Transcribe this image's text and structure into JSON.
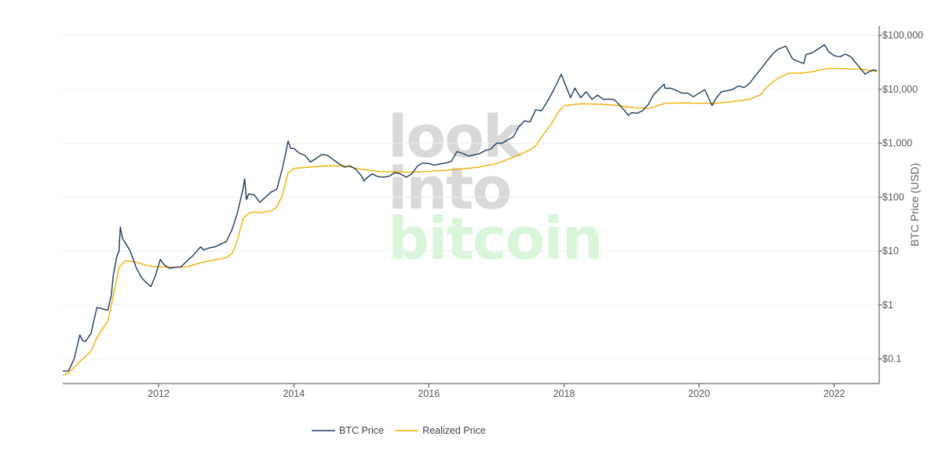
{
  "chart_data": {
    "type": "line",
    "title": "",
    "xlabel": "",
    "ylabel": "BTC Price (USD)",
    "y_scale": "log",
    "ylim": [
      0.035,
      150000
    ],
    "xlim": [
      "2010-08-01",
      "2022-09-01"
    ],
    "x_ticks": [
      "2012",
      "2014",
      "2016",
      "2018",
      "2020",
      "2022"
    ],
    "y_ticks": [
      {
        "value": 0.1,
        "label": "$0.1"
      },
      {
        "value": 1,
        "label": "$1"
      },
      {
        "value": 10,
        "label": "$10"
      },
      {
        "value": 100,
        "label": "$100"
      },
      {
        "value": 1000,
        "label": "$1,000"
      },
      {
        "value": 10000,
        "label": "$10,000"
      },
      {
        "value": 100000,
        "label": "$100,000"
      }
    ],
    "grid": true,
    "legend_position": "bottom-center",
    "watermark": {
      "lines": [
        "look",
        "into",
        "bitcoin"
      ],
      "colors": [
        "#d9d9d9",
        "#d9d9d9",
        "#d8f5da"
      ]
    },
    "series": [
      {
        "name": "BTC Price",
        "color": "#1d3a5c",
        "points": [
          [
            "2010-08-01",
            0.06
          ],
          [
            "2010-09-01",
            0.06
          ],
          [
            "2010-10-01",
            0.1
          ],
          [
            "2010-11-01",
            0.28
          ],
          [
            "2010-11-15",
            0.22
          ],
          [
            "2010-12-01",
            0.21
          ],
          [
            "2011-01-01",
            0.3
          ],
          [
            "2011-02-01",
            0.9
          ],
          [
            "2011-03-01",
            0.85
          ],
          [
            "2011-04-01",
            0.8
          ],
          [
            "2011-04-20",
            1.5
          ],
          [
            "2011-05-01",
            3.5
          ],
          [
            "2011-05-20",
            8
          ],
          [
            "2011-06-01",
            10
          ],
          [
            "2011-06-08",
            28
          ],
          [
            "2011-06-20",
            17
          ],
          [
            "2011-07-01",
            15
          ],
          [
            "2011-08-01",
            10
          ],
          [
            "2011-09-01",
            5
          ],
          [
            "2011-10-01",
            3.2
          ],
          [
            "2011-11-01",
            2.5
          ],
          [
            "2011-11-20",
            2.2
          ],
          [
            "2011-12-15",
            3.5
          ],
          [
            "2012-01-10",
            7
          ],
          [
            "2012-02-01",
            5.5
          ],
          [
            "2012-03-01",
            4.8
          ],
          [
            "2012-04-01",
            5
          ],
          [
            "2012-05-01",
            5.1
          ],
          [
            "2012-06-01",
            6.5
          ],
          [
            "2012-07-01",
            8
          ],
          [
            "2012-08-15",
            12
          ],
          [
            "2012-09-01",
            10.5
          ],
          [
            "2012-10-01",
            11.5
          ],
          [
            "2012-11-01",
            12
          ],
          [
            "2012-12-01",
            13.5
          ],
          [
            "2013-01-01",
            15
          ],
          [
            "2013-02-01",
            25
          ],
          [
            "2013-03-01",
            50
          ],
          [
            "2013-04-01",
            140
          ],
          [
            "2013-04-10",
            220
          ],
          [
            "2013-04-20",
            90
          ],
          [
            "2013-05-01",
            115
          ],
          [
            "2013-06-01",
            110
          ],
          [
            "2013-07-01",
            80
          ],
          [
            "2013-08-01",
            100
          ],
          [
            "2013-09-01",
            125
          ],
          [
            "2013-10-01",
            140
          ],
          [
            "2013-11-01",
            350
          ],
          [
            "2013-11-20",
            700
          ],
          [
            "2013-12-01",
            1100
          ],
          [
            "2013-12-15",
            800
          ],
          [
            "2014-01-01",
            800
          ],
          [
            "2014-02-01",
            650
          ],
          [
            "2014-03-01",
            600
          ],
          [
            "2014-04-01",
            450
          ],
          [
            "2014-05-01",
            520
          ],
          [
            "2014-06-01",
            620
          ],
          [
            "2014-07-01",
            600
          ],
          [
            "2014-08-01",
            500
          ],
          [
            "2014-09-01",
            420
          ],
          [
            "2014-10-01",
            360
          ],
          [
            "2014-11-01",
            380
          ],
          [
            "2014-12-01",
            330
          ],
          [
            "2015-01-01",
            250
          ],
          [
            "2015-01-15",
            200
          ],
          [
            "2015-02-01",
            230
          ],
          [
            "2015-03-01",
            270
          ],
          [
            "2015-04-01",
            240
          ],
          [
            "2015-05-01",
            235
          ],
          [
            "2015-06-01",
            245
          ],
          [
            "2015-07-01",
            285
          ],
          [
            "2015-08-01",
            270
          ],
          [
            "2015-09-01",
            235
          ],
          [
            "2015-10-01",
            270
          ],
          [
            "2015-11-01",
            380
          ],
          [
            "2015-12-01",
            430
          ],
          [
            "2016-01-01",
            420
          ],
          [
            "2016-02-01",
            390
          ],
          [
            "2016-03-01",
            415
          ],
          [
            "2016-04-01",
            430
          ],
          [
            "2016-05-01",
            460
          ],
          [
            "2016-06-01",
            700
          ],
          [
            "2016-07-01",
            650
          ],
          [
            "2016-08-01",
            580
          ],
          [
            "2016-09-01",
            605
          ],
          [
            "2016-10-01",
            640
          ],
          [
            "2016-11-01",
            730
          ],
          [
            "2016-12-01",
            780
          ],
          [
            "2017-01-01",
            1000
          ],
          [
            "2017-02-01",
            1000
          ],
          [
            "2017-03-01",
            1150
          ],
          [
            "2017-04-01",
            1300
          ],
          [
            "2017-05-01",
            2000
          ],
          [
            "2017-06-01",
            2600
          ],
          [
            "2017-07-01",
            2500
          ],
          [
            "2017-08-01",
            4200
          ],
          [
            "2017-09-01",
            4000
          ],
          [
            "2017-10-01",
            5800
          ],
          [
            "2017-11-01",
            9000
          ],
          [
            "2017-12-17",
            19000
          ],
          [
            "2018-01-01",
            14000
          ],
          [
            "2018-02-05",
            7000
          ],
          [
            "2018-03-01",
            10500
          ],
          [
            "2018-04-01",
            7000
          ],
          [
            "2018-05-01",
            9000
          ],
          [
            "2018-06-01",
            6500
          ],
          [
            "2018-07-01",
            7800
          ],
          [
            "2018-08-01",
            6500
          ],
          [
            "2018-09-01",
            6600
          ],
          [
            "2018-10-01",
            6400
          ],
          [
            "2018-11-20",
            4200
          ],
          [
            "2018-12-15",
            3300
          ],
          [
            "2019-01-01",
            3700
          ],
          [
            "2019-02-01",
            3600
          ],
          [
            "2019-03-01",
            4000
          ],
          [
            "2019-04-01",
            5200
          ],
          [
            "2019-05-01",
            8000
          ],
          [
            "2019-06-26",
            12500
          ],
          [
            "2019-07-01",
            10500
          ],
          [
            "2019-08-01",
            10500
          ],
          [
            "2019-09-01",
            9500
          ],
          [
            "2019-10-01",
            8500
          ],
          [
            "2019-11-01",
            8500
          ],
          [
            "2019-12-01",
            7300
          ],
          [
            "2020-01-01",
            8500
          ],
          [
            "2020-02-01",
            9800
          ],
          [
            "2020-03-12",
            5000
          ],
          [
            "2020-04-01",
            6800
          ],
          [
            "2020-05-01",
            9000
          ],
          [
            "2020-06-01",
            9400
          ],
          [
            "2020-07-01",
            10000
          ],
          [
            "2020-08-01",
            11500
          ],
          [
            "2020-09-01",
            10800
          ],
          [
            "2020-10-01",
            13000
          ],
          [
            "2020-11-01",
            18000
          ],
          [
            "2020-12-01",
            24000
          ],
          [
            "2021-01-01",
            33000
          ],
          [
            "2021-02-01",
            45000
          ],
          [
            "2021-03-01",
            55000
          ],
          [
            "2021-04-14",
            63000
          ],
          [
            "2021-05-20",
            37000
          ],
          [
            "2021-06-01",
            35000
          ],
          [
            "2021-07-20",
            30000
          ],
          [
            "2021-08-01",
            44000
          ],
          [
            "2021-09-01",
            47000
          ],
          [
            "2021-10-01",
            55000
          ],
          [
            "2021-11-10",
            67000
          ],
          [
            "2021-12-01",
            50000
          ],
          [
            "2022-01-01",
            42000
          ],
          [
            "2022-02-01",
            40000
          ],
          [
            "2022-03-01",
            45000
          ],
          [
            "2022-04-01",
            40000
          ],
          [
            "2022-05-01",
            30000
          ],
          [
            "2022-06-18",
            19000
          ],
          [
            "2022-07-01",
            20500
          ],
          [
            "2022-08-01",
            23000
          ],
          [
            "2022-08-20",
            22000
          ]
        ]
      },
      {
        "name": "Realized Price",
        "color": "#f0b000",
        "points": [
          [
            "2010-08-01",
            0.05
          ],
          [
            "2010-09-01",
            0.055
          ],
          [
            "2010-10-01",
            0.07
          ],
          [
            "2010-11-01",
            0.09
          ],
          [
            "2010-12-01",
            0.11
          ],
          [
            "2011-01-01",
            0.14
          ],
          [
            "2011-02-01",
            0.25
          ],
          [
            "2011-03-01",
            0.35
          ],
          [
            "2011-04-01",
            0.5
          ],
          [
            "2011-05-01",
            1.5
          ],
          [
            "2011-06-01",
            5
          ],
          [
            "2011-07-01",
            6.5
          ],
          [
            "2011-08-01",
            6.5
          ],
          [
            "2011-09-01",
            6.2
          ],
          [
            "2011-10-01",
            5.8
          ],
          [
            "2011-11-01",
            5.4
          ],
          [
            "2011-12-01",
            5.2
          ],
          [
            "2012-01-01",
            5.1
          ],
          [
            "2012-03-01",
            5
          ],
          [
            "2012-06-01",
            5.1
          ],
          [
            "2012-09-01",
            6.3
          ],
          [
            "2012-12-01",
            7.2
          ],
          [
            "2013-01-01",
            7.5
          ],
          [
            "2013-02-01",
            9
          ],
          [
            "2013-03-01",
            15
          ],
          [
            "2013-04-01",
            40
          ],
          [
            "2013-05-01",
            50
          ],
          [
            "2013-06-01",
            53
          ],
          [
            "2013-07-01",
            52
          ],
          [
            "2013-08-01",
            53
          ],
          [
            "2013-09-01",
            56
          ],
          [
            "2013-10-01",
            65
          ],
          [
            "2013-11-01",
            110
          ],
          [
            "2013-12-01",
            280
          ],
          [
            "2014-01-01",
            340
          ],
          [
            "2014-02-01",
            350
          ],
          [
            "2014-04-01",
            360
          ],
          [
            "2014-07-01",
            380
          ],
          [
            "2014-10-01",
            380
          ],
          [
            "2015-01-01",
            330
          ],
          [
            "2015-04-01",
            300
          ],
          [
            "2015-07-01",
            295
          ],
          [
            "2015-10-01",
            290
          ],
          [
            "2016-01-01",
            300
          ],
          [
            "2016-04-01",
            315
          ],
          [
            "2016-07-01",
            335
          ],
          [
            "2016-10-01",
            360
          ],
          [
            "2017-01-01",
            420
          ],
          [
            "2017-04-01",
            550
          ],
          [
            "2017-07-01",
            750
          ],
          [
            "2017-08-01",
            900
          ],
          [
            "2017-09-01",
            1300
          ],
          [
            "2017-10-01",
            1800
          ],
          [
            "2017-11-01",
            2500
          ],
          [
            "2017-12-01",
            3800
          ],
          [
            "2018-01-01",
            5000
          ],
          [
            "2018-04-01",
            5400
          ],
          [
            "2018-07-01",
            5300
          ],
          [
            "2018-10-01",
            5100
          ],
          [
            "2019-01-01",
            4600
          ],
          [
            "2019-04-01",
            4400
          ],
          [
            "2019-07-01",
            5500
          ],
          [
            "2019-10-01",
            5600
          ],
          [
            "2020-01-01",
            5500
          ],
          [
            "2020-04-01",
            5500
          ],
          [
            "2020-07-01",
            5900
          ],
          [
            "2020-10-01",
            6500
          ],
          [
            "2020-12-01",
            8000
          ],
          [
            "2021-01-01",
            11000
          ],
          [
            "2021-03-01",
            16000
          ],
          [
            "2021-05-01",
            20000
          ],
          [
            "2021-07-01",
            20000
          ],
          [
            "2021-09-01",
            21000
          ],
          [
            "2021-12-01",
            24500
          ],
          [
            "2022-03-01",
            24000
          ],
          [
            "2022-06-01",
            23500
          ],
          [
            "2022-08-20",
            21500
          ]
        ]
      }
    ]
  }
}
